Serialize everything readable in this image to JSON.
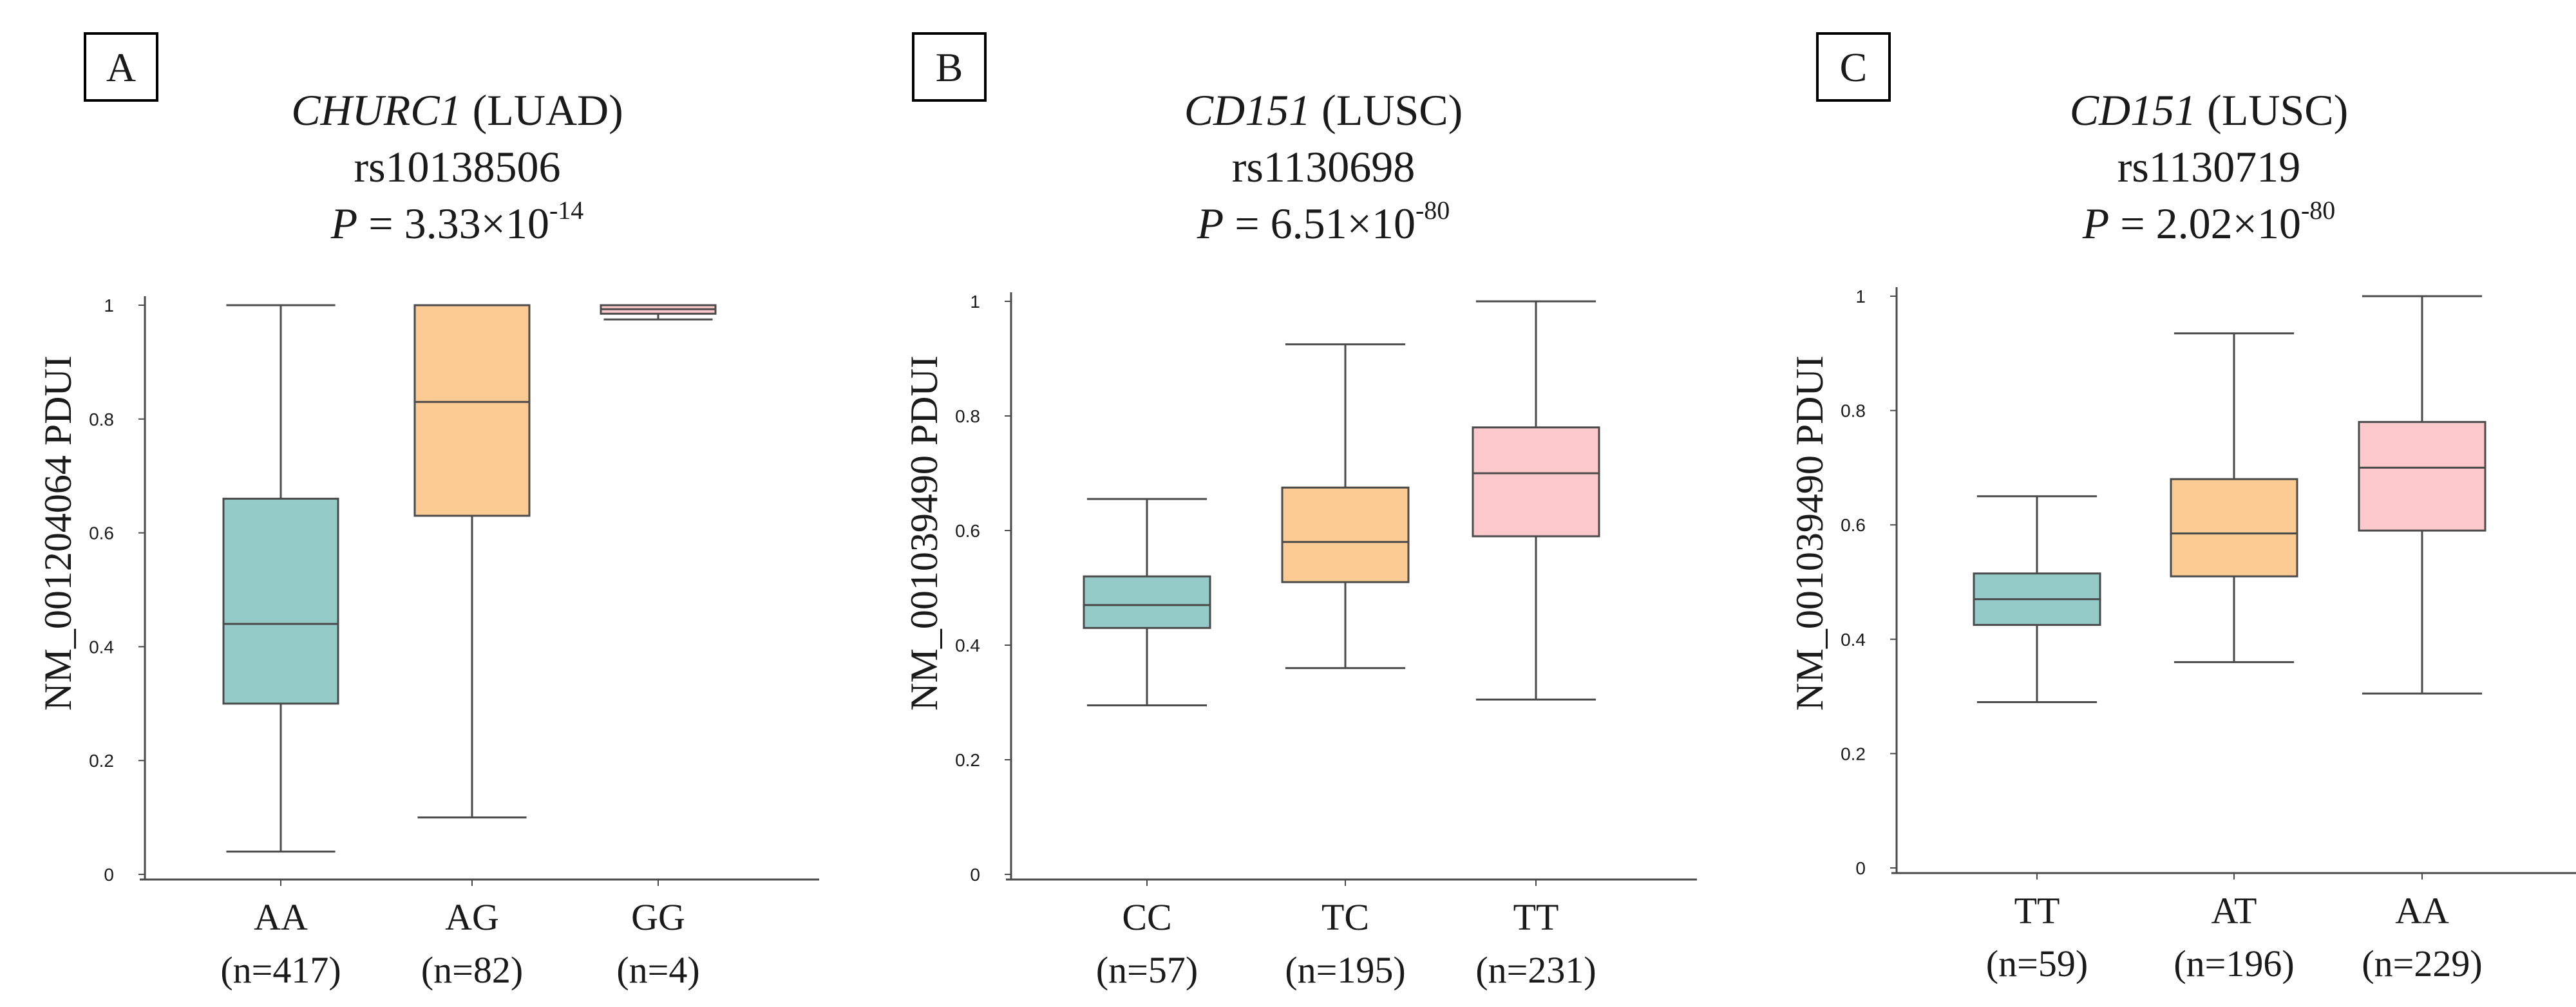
{
  "chart_data": [
    {
      "type": "box",
      "panel": "A",
      "title": {
        "gene": "CHURC1",
        "cohort": "(LUAD)",
        "snp": "rs10138506",
        "p_prefix": "P",
        "p_mantissa": " = 3.33×10",
        "p_exponent": "-14"
      },
      "ylabel": "NM_001204064 PDUI",
      "ylim": [
        0,
        1
      ],
      "yticks": [
        "0",
        "0.2",
        "0.4",
        "0.6",
        "0.8",
        "1"
      ],
      "categories": [
        {
          "label": "AA",
          "n": "(n=417)",
          "min": 0.04,
          "q1": 0.3,
          "median": 0.44,
          "q3": 0.66,
          "max": 1.0,
          "color": "#94cbc9"
        },
        {
          "label": "AG",
          "n": "(n=82)",
          "min": 0.1,
          "q1": 0.63,
          "median": 0.83,
          "q3": 1.0,
          "max": 1.0,
          "color": "#fccb93"
        },
        {
          "label": "GG",
          "n": "(n=4)",
          "min": 0.975,
          "q1": 0.985,
          "median": 0.993,
          "q3": 1.0,
          "max": 1.0,
          "color": "#fdc9cc"
        }
      ]
    },
    {
      "type": "box",
      "panel": "B",
      "title": {
        "gene": "CD151",
        "cohort": "(LUSC)",
        "snp": "rs1130698",
        "p_prefix": "P",
        "p_mantissa": " = 6.51×10",
        "p_exponent": "-80"
      },
      "ylabel": "NM_001039490 PDUI",
      "ylim": [
        0,
        1
      ],
      "yticks": [
        "0",
        "0.2",
        "0.4",
        "0.6",
        "0.8",
        "1"
      ],
      "categories": [
        {
          "label": "CC",
          "n": "(n=57)",
          "min": 0.295,
          "q1": 0.43,
          "median": 0.47,
          "q3": 0.52,
          "max": 0.655,
          "color": "#94cbc9"
        },
        {
          "label": "TC",
          "n": "(n=195)",
          "min": 0.36,
          "q1": 0.51,
          "median": 0.58,
          "q3": 0.675,
          "max": 0.925,
          "color": "#fccb93"
        },
        {
          "label": "TT",
          "n": "(n=231)",
          "min": 0.305,
          "q1": 0.59,
          "median": 0.7,
          "q3": 0.78,
          "max": 1.0,
          "color": "#fdc9cc"
        }
      ]
    },
    {
      "type": "box",
      "panel": "C",
      "title": {
        "gene": "CD151",
        "cohort": "(LUSC)",
        "snp": "rs1130719",
        "p_prefix": "P",
        "p_mantissa": " = 2.02×10",
        "p_exponent": "-80"
      },
      "ylabel": "NM_001039490 PDUI",
      "ylim": [
        0,
        1
      ],
      "yticks": [
        "0",
        "0.2",
        "0.4",
        "0.6",
        "0.8",
        "1"
      ],
      "categories": [
        {
          "label": "TT",
          "n": "(n=59)",
          "min": 0.29,
          "q1": 0.425,
          "median": 0.47,
          "q3": 0.515,
          "max": 0.65,
          "color": "#94cbc9"
        },
        {
          "label": "AT",
          "n": "(n=196)",
          "min": 0.36,
          "q1": 0.51,
          "median": 0.585,
          "q3": 0.68,
          "max": 0.935,
          "color": "#fccb93"
        },
        {
          "label": "AA",
          "n": "(n=229)",
          "min": 0.305,
          "q1": 0.59,
          "median": 0.7,
          "q3": 0.78,
          "max": 1.0,
          "color": "#fdc9cc"
        }
      ]
    }
  ]
}
